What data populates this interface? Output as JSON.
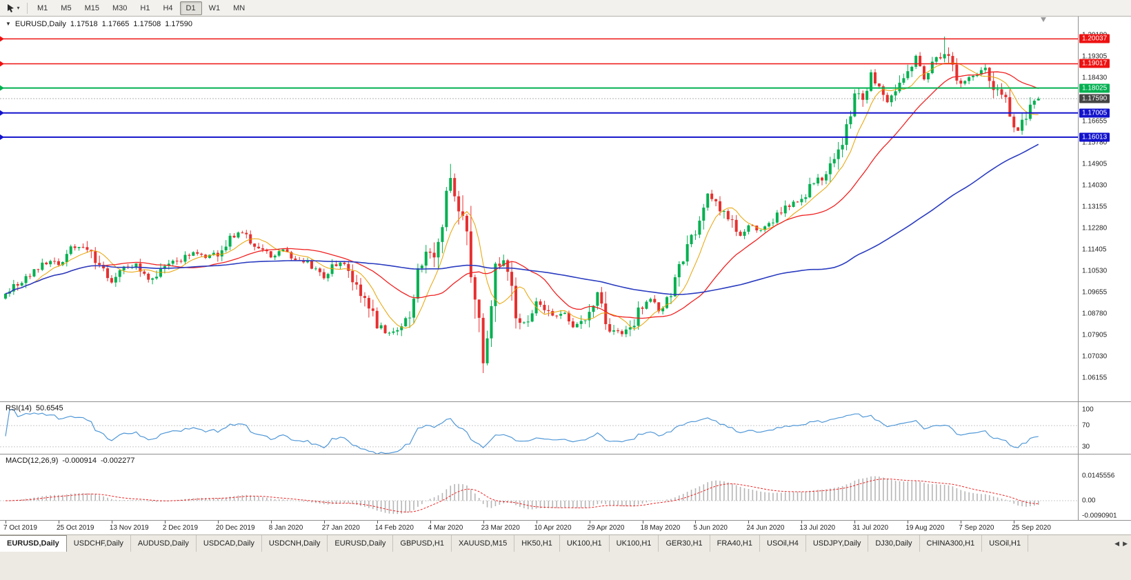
{
  "toolbar": {
    "cursor_icon": "chart-cursor",
    "dropdown_glyph": "▾",
    "timeframes": [
      "M1",
      "M5",
      "M15",
      "M30",
      "H1",
      "H4",
      "D1",
      "W1",
      "MN"
    ],
    "active_timeframe": "D1"
  },
  "chart": {
    "collapse_icon": "▼",
    "symbol": "EURUSD,Daily",
    "open": "1.17518",
    "high": "1.17665",
    "low": "1.17508",
    "close": "1.17590",
    "rsi_name": "RSI(14)",
    "rsi_value": "50.6545",
    "macd_name": "MACD(12,26,9)",
    "macd_value": "-0.000914",
    "macd_signal": "-0.002277"
  },
  "chart_data": {
    "type": "candlestick-with-indicators",
    "symbol": "EURUSD",
    "timeframe": "Daily",
    "grid": false,
    "bar_count": 254,
    "bars_per_label": 13,
    "x_labels": [
      "7 Oct 2019",
      "25 Oct 2019",
      "13 Nov 2019",
      "2 Dec 2019",
      "20 Dec 2019",
      "8 Jan 2020",
      "27 Jan 2020",
      "14 Feb 2020",
      "4 Mar 2020",
      "23 Mar 2020",
      "10 Apr 2020",
      "29 Apr 2020",
      "18 May 2020",
      "5 Jun 2020",
      "24 Jun 2020",
      "13 Jul 2020",
      "31 Jul 2020",
      "19 Aug 2020",
      "7 Sep 2020",
      "25 Sep 2020"
    ],
    "price_range": {
      "top": 1.2095,
      "bottom": 1.052
    },
    "y_axis_labels": [
      {
        "text": "1.20180",
        "price": 1.2018
      },
      {
        "text": "1.19305",
        "price": 1.19305
      },
      {
        "text": "1.18430",
        "price": 1.1843
      },
      {
        "text": "1.16655",
        "price": 1.16655
      },
      {
        "text": "1.15780",
        "price": 1.1578
      },
      {
        "text": "1.14905",
        "price": 1.14905
      },
      {
        "text": "1.14030",
        "price": 1.1403
      },
      {
        "text": "1.13155",
        "price": 1.13155
      },
      {
        "text": "1.12280",
        "price": 1.1228
      },
      {
        "text": "1.11405",
        "price": 1.11405
      },
      {
        "text": "1.10530",
        "price": 1.1053
      },
      {
        "text": "1.09655",
        "price": 1.09655
      },
      {
        "text": "1.08780",
        "price": 1.0878
      },
      {
        "text": "1.07905",
        "price": 1.07905
      },
      {
        "text": "1.07030",
        "price": 1.0703
      },
      {
        "text": "1.06155",
        "price": 1.06155
      }
    ],
    "ohlc_current": {
      "open": 1.17518,
      "high": 1.17665,
      "low": 1.17508,
      "close": 1.1759
    },
    "close_anchors": [
      [
        0,
        1.0965
      ],
      [
        2,
        1.099
      ],
      [
        5,
        1.102
      ],
      [
        8,
        1.1065
      ],
      [
        11,
        1.11
      ],
      [
        13,
        1.108
      ],
      [
        16,
        1.114
      ],
      [
        18,
        1.116
      ],
      [
        20,
        1.115
      ],
      [
        23,
        1.1075
      ],
      [
        26,
        1.101
      ],
      [
        29,
        1.106
      ],
      [
        32,
        1.1075
      ],
      [
        35,
        1.101
      ],
      [
        39,
        1.108
      ],
      [
        43,
        1.11
      ],
      [
        46,
        1.113
      ],
      [
        49,
        1.1115
      ],
      [
        52,
        1.112
      ],
      [
        55,
        1.1185
      ],
      [
        58,
        1.1215
      ],
      [
        61,
        1.116
      ],
      [
        65,
        1.1115
      ],
      [
        68,
        1.114
      ],
      [
        71,
        1.1105
      ],
      [
        74,
        1.1095
      ],
      [
        78,
        1.1025
      ],
      [
        80,
        1.1075
      ],
      [
        83,
        1.1095
      ],
      [
        86,
        1.1
      ],
      [
        88,
        1.0945
      ],
      [
        91,
        1.084
      ],
      [
        94,
        1.0795
      ],
      [
        97,
        1.084
      ],
      [
        99,
        1.089
      ],
      [
        101,
        1.103
      ],
      [
        103,
        1.112
      ],
      [
        105,
        1.1135
      ],
      [
        107,
        1.128
      ],
      [
        109,
        1.144
      ],
      [
        110,
        1.136
      ],
      [
        112,
        1.128
      ],
      [
        113,
        1.118
      ],
      [
        115,
        1.098
      ],
      [
        117,
        1.069
      ],
      [
        118,
        1.078
      ],
      [
        120,
        1.104
      ],
      [
        122,
        1.111
      ],
      [
        124,
        1.097
      ],
      [
        126,
        1.082
      ],
      [
        128,
        1.086
      ],
      [
        130,
        1.0935
      ],
      [
        132,
        1.0895
      ],
      [
        134,
        1.0865
      ],
      [
        137,
        1.0875
      ],
      [
        139,
        1.082
      ],
      [
        141,
        1.084
      ],
      [
        143,
        1.0875
      ],
      [
        145,
        1.0975
      ],
      [
        147,
        1.084
      ],
      [
        149,
        1.081
      ],
      [
        151,
        1.0795
      ],
      [
        153,
        1.0815
      ],
      [
        156,
        1.0915
      ],
      [
        158,
        1.0945
      ],
      [
        160,
        1.0895
      ],
      [
        162,
        1.093
      ],
      [
        164,
        1.101
      ],
      [
        166,
        1.11
      ],
      [
        168,
        1.118
      ],
      [
        170,
        1.129
      ],
      [
        172,
        1.137
      ],
      [
        174,
        1.133
      ],
      [
        176,
        1.1295
      ],
      [
        178,
        1.1245
      ],
      [
        180,
        1.119
      ],
      [
        182,
        1.125
      ],
      [
        184,
        1.1215
      ],
      [
        186,
        1.1245
      ],
      [
        188,
        1.126
      ],
      [
        190,
        1.13
      ],
      [
        193,
        1.133
      ],
      [
        195,
        1.134
      ],
      [
        197,
        1.1395
      ],
      [
        199,
        1.143
      ],
      [
        201,
        1.144
      ],
      [
        203,
        1.151
      ],
      [
        205,
        1.159
      ],
      [
        207,
        1.17
      ],
      [
        208,
        1.178
      ],
      [
        210,
        1.1755
      ],
      [
        212,
        1.1855
      ],
      [
        214,
        1.1805
      ],
      [
        216,
        1.1745
      ],
      [
        218,
        1.179
      ],
      [
        220,
        1.183
      ],
      [
        221,
        1.185
      ],
      [
        223,
        1.193
      ],
      [
        225,
        1.184
      ],
      [
        227,
        1.19
      ],
      [
        229,
        1.1935
      ],
      [
        230,
        1.194
      ],
      [
        231,
        1.193
      ],
      [
        233,
        1.1845
      ],
      [
        234,
        1.182
      ],
      [
        236,
        1.184
      ],
      [
        238,
        1.1865
      ],
      [
        240,
        1.187
      ],
      [
        242,
        1.1795
      ],
      [
        244,
        1.176
      ],
      [
        245,
        1.174
      ],
      [
        246,
        1.17
      ],
      [
        247,
        1.164
      ],
      [
        248,
        1.1625
      ],
      [
        249,
        1.1665
      ],
      [
        250,
        1.17
      ],
      [
        251,
        1.173
      ],
      [
        252,
        1.1745
      ],
      [
        253,
        1.1759
      ]
    ],
    "wick_overrides": [
      {
        "i": 109,
        "high": 1.1492
      },
      {
        "i": 117,
        "low": 1.0636
      },
      {
        "i": 230,
        "high": 1.2013
      }
    ],
    "horizontal_lines": [
      {
        "price": 1.20037,
        "label": "1.20037",
        "color": "#ee1111",
        "width": 1.5
      },
      {
        "price": 1.19017,
        "label": "1.19017",
        "color": "#ee1111",
        "width": 1.5
      },
      {
        "price": 1.18025,
        "label": "1.18025",
        "color": "#00b050",
        "width": 2
      },
      {
        "price": 1.17005,
        "label": "1.17005",
        "color": "#1313cc",
        "width": 2
      },
      {
        "price": 1.16013,
        "label": "1.16013",
        "color": "#1313cc",
        "width": 2
      }
    ],
    "current_price": {
      "value": 1.1759,
      "label": "1.17590",
      "tag_color": "#454545",
      "line_color": "#b0b0b0"
    },
    "colors": {
      "bull": "#00b050",
      "bear": "#e63030",
      "ma_fast": "#e8a200",
      "ma_mid": "#f02020",
      "ma_slow": "#2a3cc0",
      "rsi": "#4f97d7",
      "macd_hist": "#b5b5b5",
      "macd_signal": "#ee2222",
      "level_dash": "#c8c8c8"
    },
    "ma_periods": {
      "fast": 8,
      "mid": 25,
      "slow": 90
    },
    "rsi": {
      "period": 14,
      "current": 50.6545,
      "levels": [
        {
          "text": "100",
          "v": 100
        },
        {
          "text": "70",
          "v": 70
        },
        {
          "text": "30",
          "v": 30
        }
      ],
      "dashed_levels": [
        70,
        30
      ]
    },
    "macd": {
      "fast": 12,
      "slow": 26,
      "signal": 9,
      "current_macd": -0.000914,
      "current_signal": -0.002277,
      "axis_labels": [
        {
          "text": "0.0145556",
          "v": 0.0145556
        },
        {
          "text": "0.00",
          "v": 0
        },
        {
          "text": "-0.0090901",
          "v": -0.0090901
        }
      ]
    },
    "seed": 20201007
  },
  "tabs": {
    "items": [
      "EURUSD,Daily",
      "USDCHF,Daily",
      "AUDUSD,Daily",
      "USDCAD,Daily",
      "USDCNH,Daily",
      "EURUSD,Daily",
      "GBPUSD,H1",
      "XAUUSD,M15",
      "HK50,H1",
      "UK100,H1",
      "UK100,H1",
      "GER30,H1",
      "FRA40,H1",
      "USOil,H4",
      "USDJPY,Daily",
      "DJ30,Daily",
      "CHINA300,H1",
      "USOil,H1"
    ],
    "active_index": 0,
    "scroll_left": "◀",
    "scroll_right": "▶"
  }
}
